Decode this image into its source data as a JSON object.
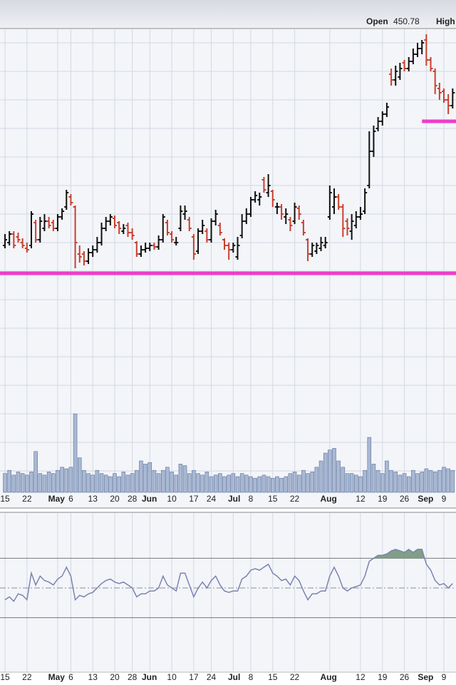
{
  "header": {
    "open_label": "Open",
    "open_value": 450.78,
    "high_label": "High"
  },
  "chart_data": [
    {
      "type": "ohlc",
      "xlim": [
        -1.14,
        102.76
      ],
      "ylim": [
        140,
        470
      ],
      "yticks": [
        160,
        180,
        200,
        220,
        240,
        260,
        280,
        300,
        320,
        340,
        360,
        380,
        400,
        420,
        440,
        460
      ],
      "grid": true,
      "up_color": "#111111",
      "down_color": "#c8402f",
      "xticks": [
        {
          "value": 0,
          "label": "15"
        },
        {
          "value": 5,
          "label": "22"
        },
        {
          "value": 12,
          "label": "May"
        },
        {
          "value": 15,
          "label": "6"
        },
        {
          "value": 20,
          "label": "13"
        },
        {
          "value": 25,
          "label": "20"
        },
        {
          "value": 29,
          "label": "28"
        },
        {
          "value": 33,
          "label": "Jun"
        },
        {
          "value": 38,
          "label": "10"
        },
        {
          "value": 43,
          "label": "17"
        },
        {
          "value": 47,
          "label": "24"
        },
        {
          "value": 52,
          "label": "Jul"
        },
        {
          "value": 56,
          "label": "8"
        },
        {
          "value": 61,
          "label": "15"
        },
        {
          "value": 66,
          "label": "22"
        },
        {
          "value": 74,
          "label": "Aug"
        },
        {
          "value": 81,
          "label": "12"
        },
        {
          "value": 86,
          "label": "19"
        },
        {
          "value": 91,
          "label": "26"
        },
        {
          "value": 96,
          "label": "Sep"
        },
        {
          "value": 100,
          "label": "9"
        }
      ],
      "levels": [
        {
          "value": 298.5,
          "from": -1.14,
          "color": "#f03cc8"
        },
        {
          "value": 405,
          "from": 95,
          "color": "#f03cc8"
        }
      ],
      "ohlc": [
        [
          318,
          326,
          316,
          322
        ],
        [
          320,
          328,
          318,
          326
        ],
        [
          326,
          328,
          316,
          318
        ],
        [
          324,
          327,
          320,
          322
        ],
        [
          320,
          323,
          316,
          318
        ],
        [
          316,
          320,
          313,
          315
        ],
        [
          318,
          342,
          316,
          340
        ],
        [
          334,
          336,
          320,
          322
        ],
        [
          322,
          338,
          320,
          335
        ],
        [
          330,
          340,
          328,
          335
        ],
        [
          335,
          338,
          330,
          332
        ],
        [
          334,
          336,
          328,
          330
        ],
        [
          330,
          340,
          328,
          338
        ],
        [
          338,
          344,
          336,
          342
        ],
        [
          345,
          357,
          343,
          355
        ],
        [
          352,
          354,
          346,
          348
        ],
        [
          345,
          346,
          302,
          320
        ],
        [
          312,
          318,
          306,
          310
        ],
        [
          312,
          314,
          304,
          307
        ],
        [
          307,
          316,
          305,
          313
        ],
        [
          313,
          318,
          310,
          315
        ],
        [
          315,
          324,
          313,
          320
        ],
        [
          320,
          334,
          318,
          330
        ],
        [
          330,
          338,
          328,
          335
        ],
        [
          335,
          340,
          332,
          338
        ],
        [
          337,
          339,
          330,
          332
        ],
        [
          334,
          335,
          326,
          330
        ],
        [
          328,
          333,
          326,
          330
        ],
        [
          332,
          334,
          324,
          327
        ],
        [
          327,
          330,
          322,
          325
        ],
        [
          320,
          321,
          310,
          312
        ],
        [
          312,
          318,
          310,
          315
        ],
        [
          315,
          320,
          313,
          316
        ],
        [
          316,
          320,
          314,
          318
        ],
        [
          318,
          320,
          315,
          317
        ],
        [
          317,
          325,
          315,
          322
        ],
        [
          322,
          340,
          320,
          338
        ],
        [
          334,
          336,
          325,
          327
        ],
        [
          326,
          328,
          320,
          322
        ],
        [
          320,
          324,
          318,
          320
        ],
        [
          330,
          346,
          328,
          342
        ],
        [
          340,
          346,
          336,
          342
        ],
        [
          336,
          338,
          328,
          330
        ],
        [
          324,
          326,
          308,
          312
        ],
        [
          314,
          330,
          312,
          328
        ],
        [
          328,
          336,
          326,
          332
        ],
        [
          328,
          330,
          320,
          322
        ],
        [
          322,
          337,
          320,
          335
        ],
        [
          335,
          343,
          332,
          340
        ],
        [
          332,
          334,
          325,
          327
        ],
        [
          322,
          323,
          315,
          318
        ],
        [
          318,
          320,
          308,
          315
        ],
        [
          315,
          320,
          313,
          318
        ],
        [
          310,
          324,
          308,
          318
        ],
        [
          325,
          340,
          323,
          335
        ],
        [
          335,
          344,
          333,
          340
        ],
        [
          340,
          352,
          338,
          350
        ],
        [
          350,
          356,
          348,
          353
        ],
        [
          350,
          355,
          346,
          352
        ],
        [
          364,
          366,
          355,
          357
        ],
        [
          355,
          368,
          352,
          360
        ],
        [
          356,
          357,
          345,
          350
        ],
        [
          345,
          348,
          340,
          345
        ],
        [
          345,
          347,
          336,
          340
        ],
        [
          338,
          344,
          333,
          340
        ],
        [
          336,
          338,
          328,
          332
        ],
        [
          335,
          348,
          333,
          345
        ],
        [
          344,
          346,
          336,
          340
        ],
        [
          334,
          336,
          325,
          327
        ],
        [
          322,
          323,
          307,
          312
        ],
        [
          312,
          320,
          310,
          318
        ],
        [
          314,
          320,
          312,
          318
        ],
        [
          316,
          324,
          314,
          320
        ],
        [
          318,
          324,
          316,
          320
        ],
        [
          338,
          360,
          336,
          355
        ],
        [
          345,
          358,
          340,
          352
        ],
        [
          352,
          354,
          343,
          345
        ],
        [
          345,
          347,
          324,
          330
        ],
        [
          335,
          337,
          325,
          330
        ],
        [
          328,
          340,
          322,
          335
        ],
        [
          332,
          342,
          330,
          338
        ],
        [
          338,
          345,
          336,
          340
        ],
        [
          342,
          358,
          340,
          355
        ],
        [
          360,
          398,
          358,
          384
        ],
        [
          384,
          402,
          380,
          398
        ],
        [
          400,
          408,
          398,
          405
        ],
        [
          405,
          412,
          402,
          410
        ],
        [
          410,
          418,
          408,
          415
        ],
        [
          438,
          442,
          430,
          434
        ],
        [
          434,
          444,
          430,
          440
        ],
        [
          436,
          446,
          434,
          442
        ],
        [
          446,
          448,
          440,
          442
        ],
        [
          442,
          450,
          440,
          447
        ],
        [
          447,
          456,
          445,
          452
        ],
        [
          452,
          460,
          450,
          456
        ],
        [
          456,
          462,
          452,
          460
        ],
        [
          462,
          466,
          444,
          448
        ],
        [
          448,
          450,
          440,
          442
        ],
        [
          440,
          442,
          424,
          430
        ],
        [
          428,
          432,
          420,
          425
        ],
        [
          426,
          428,
          418,
          420
        ],
        [
          420,
          424,
          410,
          416
        ],
        [
          416,
          428,
          414,
          425
        ]
      ]
    },
    {
      "type": "bar",
      "xlim": [
        -1.14,
        102.76
      ],
      "ylim": [
        0,
        100
      ],
      "color": "#a9b9d4",
      "edge_color": "#5a6f98",
      "values": [
        12,
        14,
        11,
        13,
        12,
        11,
        13,
        26,
        12,
        11,
        13,
        12,
        14,
        16,
        15,
        16,
        50,
        22,
        14,
        12,
        11,
        14,
        12,
        11,
        10,
        12,
        10,
        13,
        11,
        12,
        14,
        20,
        18,
        19,
        14,
        12,
        14,
        16,
        13,
        11,
        18,
        17,
        12,
        14,
        12,
        11,
        13,
        10,
        11,
        12,
        10,
        11,
        12,
        10,
        12,
        11,
        10,
        9,
        10,
        11,
        10,
        9,
        10,
        9,
        10,
        12,
        13,
        11,
        14,
        12,
        13,
        16,
        20,
        25,
        27,
        28,
        20,
        16,
        12,
        12,
        11,
        10,
        14,
        35,
        18,
        14,
        12,
        20,
        14,
        13,
        11,
        12,
        10,
        14,
        12,
        13,
        15,
        14,
        13,
        14,
        16,
        15,
        14
      ]
    },
    {
      "type": "line",
      "xlim": [
        -1.14,
        102.76
      ],
      "ylim": [
        0,
        100
      ],
      "yticks": [
        30,
        50,
        70
      ],
      "color": "#7c83b0",
      "fill_above": 70,
      "fill_color": "#7f9f86",
      "xticks": [
        {
          "value": 0,
          "label": "15"
        },
        {
          "value": 5,
          "label": "22"
        },
        {
          "value": 12,
          "label": "May"
        },
        {
          "value": 15,
          "label": "6"
        },
        {
          "value": 20,
          "label": "13"
        },
        {
          "value": 25,
          "label": "20"
        },
        {
          "value": 29,
          "label": "28"
        },
        {
          "value": 33,
          "label": "Jun"
        },
        {
          "value": 38,
          "label": "10"
        },
        {
          "value": 43,
          "label": "17"
        },
        {
          "value": 47,
          "label": "24"
        },
        {
          "value": 52,
          "label": "Jul"
        },
        {
          "value": 56,
          "label": "8"
        },
        {
          "value": 61,
          "label": "15"
        },
        {
          "value": 66,
          "label": "22"
        },
        {
          "value": 74,
          "label": "Aug"
        },
        {
          "value": 81,
          "label": "12"
        },
        {
          "value": 86,
          "label": "19"
        },
        {
          "value": 91,
          "label": "26"
        },
        {
          "value": 96,
          "label": "Sep"
        },
        {
          "value": 100,
          "label": "9"
        }
      ],
      "values": [
        42,
        44,
        41,
        46,
        45,
        42,
        60,
        52,
        58,
        55,
        54,
        52,
        56,
        58,
        64,
        58,
        42,
        45,
        44,
        46,
        47,
        50,
        53,
        55,
        56,
        54,
        53,
        54,
        52,
        50,
        44,
        46,
        46,
        48,
        48,
        50,
        58,
        52,
        50,
        48,
        60,
        60,
        52,
        44,
        50,
        54,
        50,
        55,
        58,
        52,
        48,
        47,
        48,
        48,
        56,
        58,
        62,
        63,
        62,
        64,
        66,
        60,
        58,
        55,
        56,
        52,
        58,
        55,
        48,
        42,
        46,
        46,
        48,
        48,
        58,
        64,
        58,
        50,
        48,
        50,
        51,
        52,
        58,
        68,
        70,
        72,
        72,
        73,
        75,
        76,
        75,
        74,
        76,
        74,
        76,
        76,
        66,
        62,
        55,
        52,
        53,
        50,
        53
      ]
    }
  ]
}
